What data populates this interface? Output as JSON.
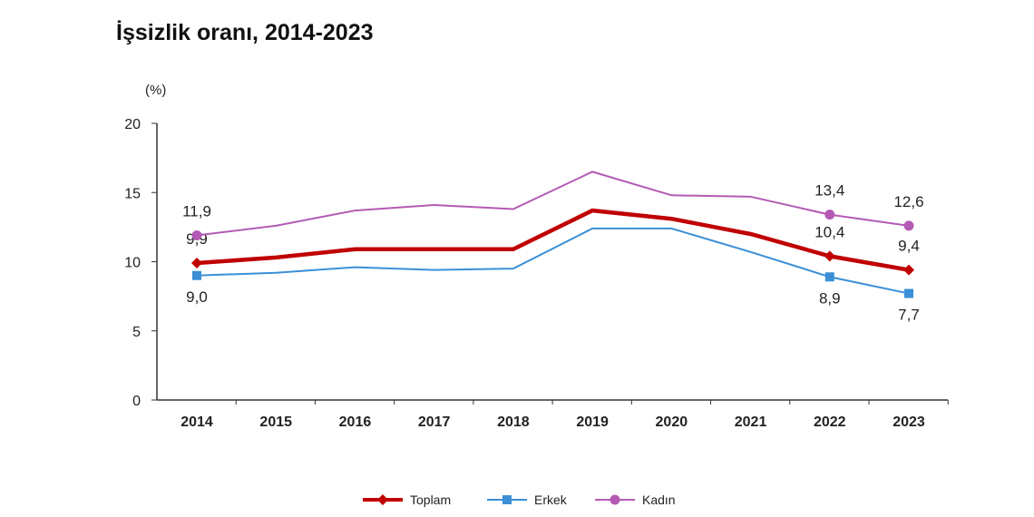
{
  "chart_data": {
    "type": "line",
    "title": "İşsizlik oranı, 2014-2023",
    "ylabel": "(%)",
    "xlabel": "",
    "ylim": [
      0,
      20
    ],
    "yticks": [
      0,
      5,
      10,
      15,
      20
    ],
    "grid": false,
    "legend_position": "bottom",
    "categories": [
      "2014",
      "2015",
      "2016",
      "2017",
      "2018",
      "2019",
      "2020",
      "2021",
      "2022",
      "2023"
    ],
    "series": [
      {
        "name": "Toplam",
        "color": "#c00000",
        "marker": "diamond",
        "values": [
          9.9,
          10.3,
          10.9,
          10.9,
          10.9,
          13.7,
          13.1,
          12.0,
          10.4,
          9.4
        ],
        "labels": {
          "0": "9,9",
          "8": "10,4",
          "9": "9,4"
        },
        "label_side": "above"
      },
      {
        "name": "Erkek",
        "color": "#3a8fd6",
        "marker": "square",
        "values": [
          9.0,
          9.2,
          9.6,
          9.4,
          9.5,
          12.4,
          12.4,
          10.7,
          8.9,
          7.7
        ],
        "labels": {
          "0": "9,0",
          "8": "8,9",
          "9": "7,7"
        },
        "label_side": "below"
      },
      {
        "name": "Kadın",
        "color": "#b45ab4",
        "marker": "circle",
        "values": [
          11.9,
          12.6,
          13.7,
          14.1,
          13.8,
          16.5,
          14.8,
          14.7,
          13.4,
          12.6
        ],
        "labels": {
          "0": "11,9",
          "8": "13,4",
          "9": "12,6"
        },
        "label_side": "above"
      }
    ]
  }
}
